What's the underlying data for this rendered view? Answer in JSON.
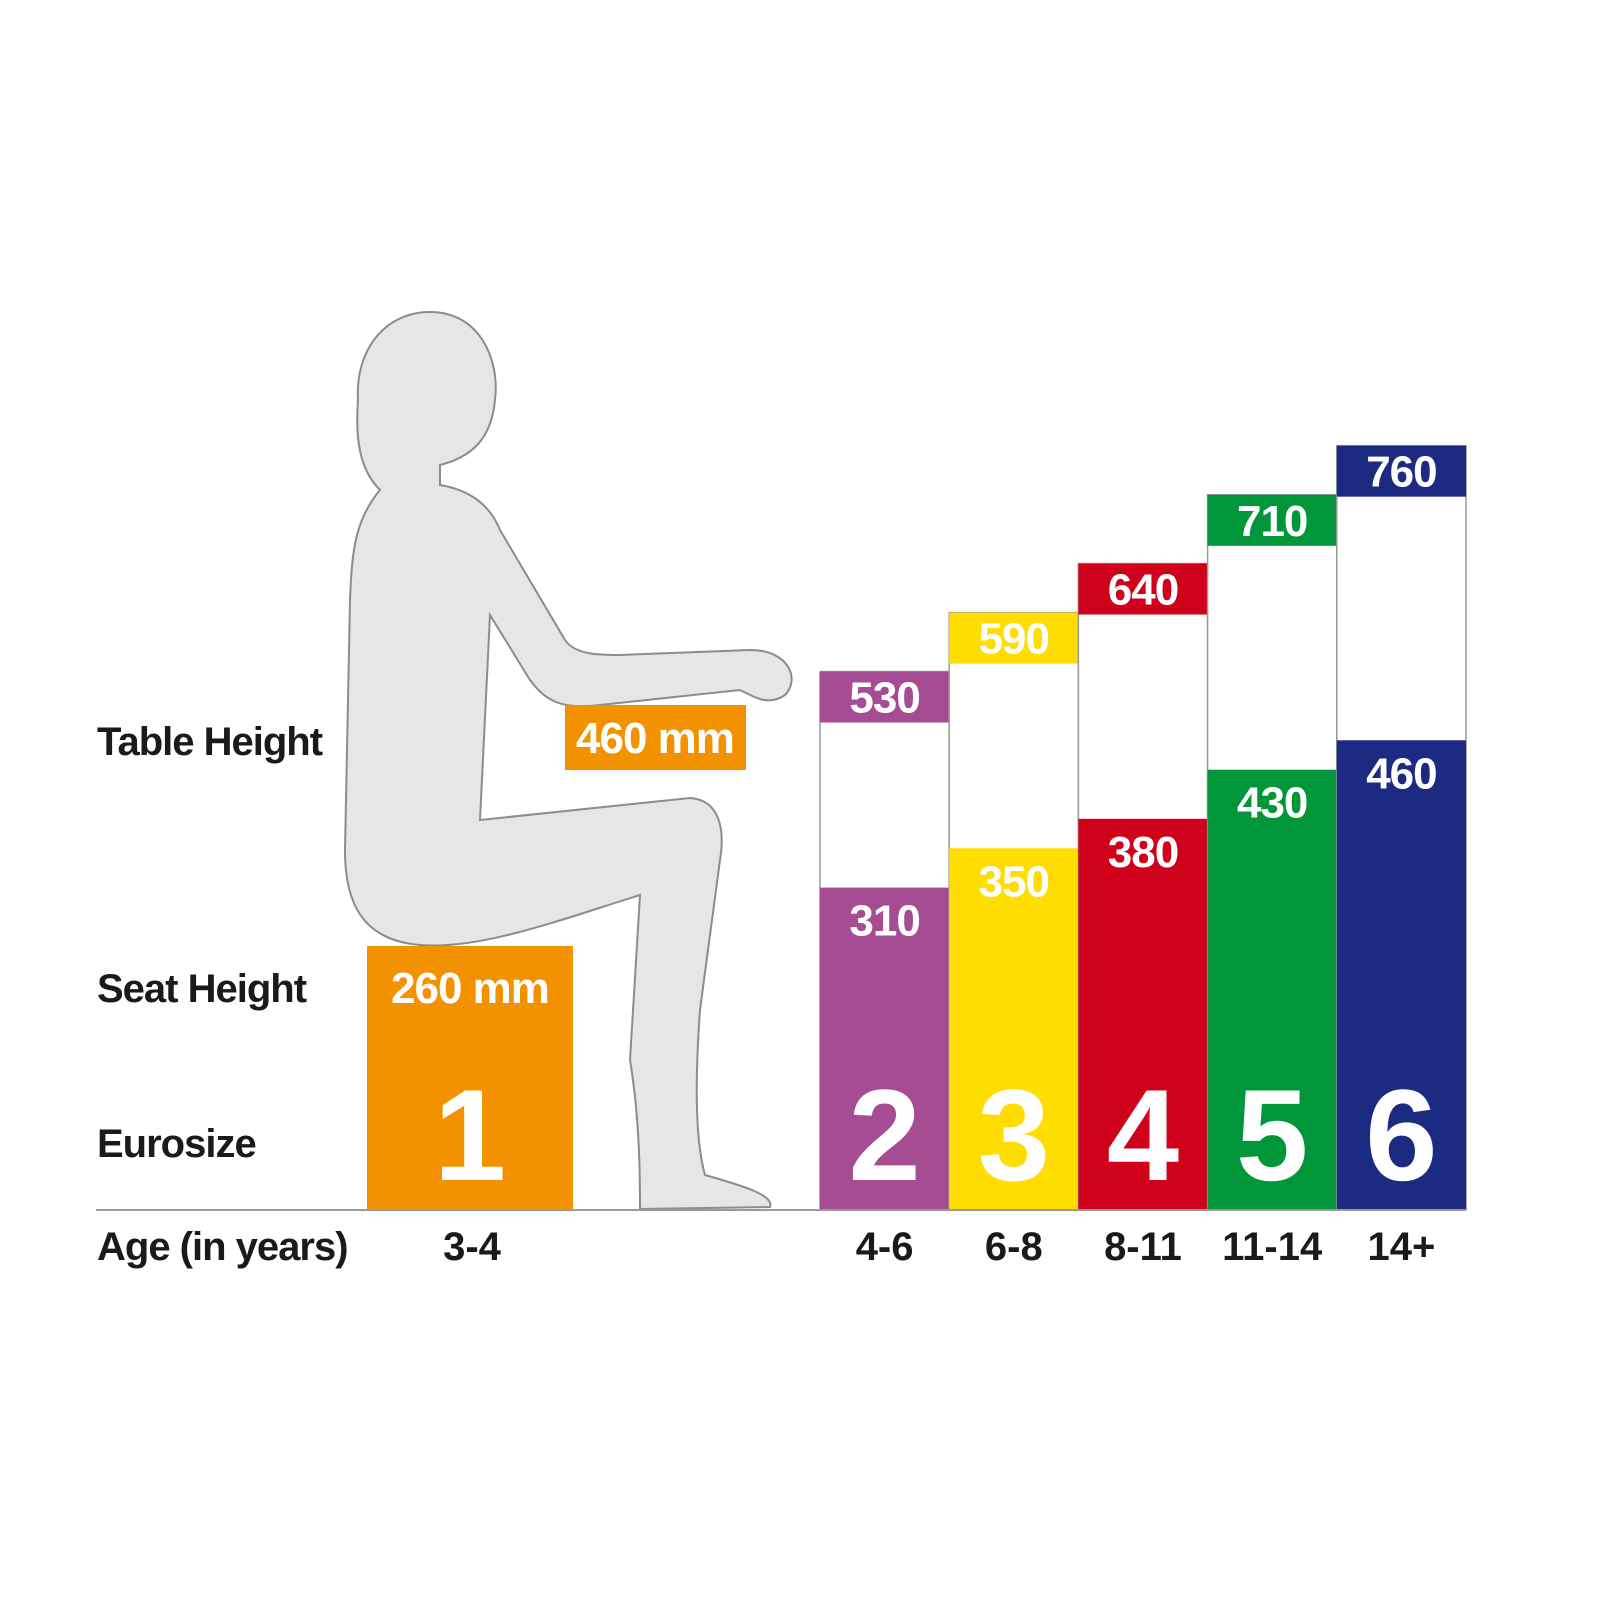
{
  "chart_data": {
    "type": "bar",
    "title": "",
    "row_labels": {
      "table_height": "Table Height",
      "seat_height": "Seat Height",
      "eurosize": "Eurosize",
      "age": "Age (in years)"
    },
    "unit": "mm",
    "reference": {
      "eurosize": "1",
      "age": "3-4",
      "seat_height_label": "260 mm",
      "table_height_label": "460 mm",
      "seat_height": 260,
      "table_height": 460,
      "color": "#f39200"
    },
    "categories": [
      "2",
      "3",
      "4",
      "5",
      "6"
    ],
    "ages": [
      "4-6",
      "6-8",
      "8-11",
      "11-14",
      "14+"
    ],
    "series": [
      {
        "name": "Seat Height",
        "values": [
          310,
          350,
          380,
          430,
          460
        ]
      },
      {
        "name": "Table Height",
        "values": [
          530,
          590,
          640,
          710,
          760
        ]
      }
    ],
    "colors": [
      "#a54c93",
      "#ffdd00",
      "#d0021b",
      "#009639",
      "#1d2a82"
    ],
    "figure_fill": "#e6e6e6",
    "figure_stroke": "#8c8c8c"
  }
}
